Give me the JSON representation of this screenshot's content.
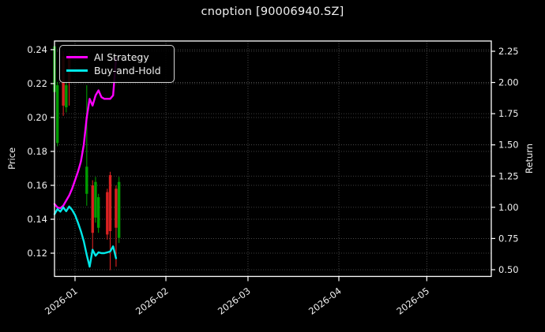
{
  "title": "cnoption [90006940.SZ]",
  "colors": {
    "background": "#000000",
    "text": "#f0f0f0",
    "grid": "#555555",
    "spine": "#ffffff",
    "ai_strategy": "#ff00ff",
    "buy_and_hold": "#00e8e8",
    "candle_up": "#009b00",
    "candle_down": "#d92121"
  },
  "legend": {
    "items": [
      {
        "label": "AI Strategy",
        "color": "#ff00ff"
      },
      {
        "label": "Buy-and-Hold",
        "color": "#00e8e8"
      }
    ]
  },
  "chart_data": {
    "type": "line+candlestick",
    "title": "cnoption [90006940.SZ]",
    "grid": {
      "style": "dotted",
      "color": "#555555"
    },
    "legend_position": "upper-left",
    "x_axis": {
      "domain": [
        "2025-12-25",
        "2026-05-23"
      ],
      "ticks": [
        {
          "date": "2026-01-01",
          "label": "2026-01"
        },
        {
          "date": "2026-02-01",
          "label": "2026-02"
        },
        {
          "date": "2026-03-01",
          "label": "2026-03"
        },
        {
          "date": "2026-04-01",
          "label": "2026-04"
        },
        {
          "date": "2026-05-01",
          "label": "2026-05"
        }
      ],
      "tick_rotation_deg": 37
    },
    "left_axis": {
      "label": "Price",
      "range": [
        0.1063,
        0.2451
      ],
      "ticks": [
        {
          "value": 0.12,
          "label": "0.12"
        },
        {
          "value": 0.14,
          "label": "0.14"
        },
        {
          "value": 0.16,
          "label": "0.16"
        },
        {
          "value": 0.18,
          "label": "0.18"
        },
        {
          "value": 0.2,
          "label": "0.20"
        },
        {
          "value": 0.22,
          "label": "0.22"
        },
        {
          "value": 0.24,
          "label": "0.24"
        }
      ]
    },
    "right_axis": {
      "label": "Return",
      "range": [
        0.4463,
        2.3321
      ],
      "ticks": [
        {
          "value": 0.5,
          "label": "0.50"
        },
        {
          "value": 0.75,
          "label": "0.75"
        },
        {
          "value": 1.0,
          "label": "1.00"
        },
        {
          "value": 1.25,
          "label": "1.25"
        },
        {
          "value": 1.5,
          "label": "1.50"
        },
        {
          "value": 1.75,
          "label": "1.75"
        },
        {
          "value": 2.0,
          "label": "2.00"
        },
        {
          "value": 2.25,
          "label": "2.25"
        }
      ]
    },
    "series": [
      {
        "name": "AI Strategy",
        "axis": "left",
        "color": "#ff00ff",
        "points": [
          [
            "2025-12-25",
            0.149
          ],
          [
            "2025-12-26",
            0.147
          ],
          [
            "2025-12-27",
            0.1465
          ],
          [
            "2025-12-28",
            0.148
          ],
          [
            "2025-12-29",
            0.151
          ],
          [
            "2025-12-30",
            0.154
          ],
          [
            "2025-12-31",
            0.158
          ],
          [
            "2026-01-01",
            0.163
          ],
          [
            "2026-01-02",
            0.168
          ],
          [
            "2026-01-03",
            0.174
          ],
          [
            "2026-01-04",
            0.184
          ],
          [
            "2026-01-05",
            0.2
          ],
          [
            "2026-01-06",
            0.211
          ],
          [
            "2026-01-07",
            0.207
          ],
          [
            "2026-01-08",
            0.213
          ],
          [
            "2026-01-09",
            0.216
          ],
          [
            "2026-01-10",
            0.212
          ],
          [
            "2026-01-11",
            0.211
          ],
          [
            "2026-01-12",
            0.211
          ],
          [
            "2026-01-13",
            0.211
          ],
          [
            "2026-01-14",
            0.213
          ],
          [
            "2026-01-15",
            0.235
          ]
        ]
      },
      {
        "name": "Buy-and-Hold",
        "axis": "left",
        "color": "#00e8e8",
        "points": [
          [
            "2025-12-25",
            0.143
          ],
          [
            "2025-12-26",
            0.146
          ],
          [
            "2025-12-27",
            0.1445
          ],
          [
            "2025-12-28",
            0.147
          ],
          [
            "2025-12-29",
            0.1447
          ],
          [
            "2025-12-30",
            0.1475
          ],
          [
            "2025-12-31",
            0.1455
          ],
          [
            "2026-01-01",
            0.1425
          ],
          [
            "2026-01-02",
            0.138
          ],
          [
            "2026-01-03",
            0.133
          ],
          [
            "2026-01-04",
            0.127
          ],
          [
            "2026-01-05",
            0.119
          ],
          [
            "2026-01-06",
            0.112
          ],
          [
            "2026-01-07",
            0.122
          ],
          [
            "2026-01-08",
            0.1185
          ],
          [
            "2026-01-09",
            0.1205
          ],
          [
            "2026-01-10",
            0.12
          ],
          [
            "2026-01-11",
            0.12
          ],
          [
            "2026-01-12",
            0.1205
          ],
          [
            "2026-01-13",
            0.121
          ],
          [
            "2026-01-14",
            0.124
          ],
          [
            "2026-01-15",
            0.117
          ]
        ]
      }
    ],
    "candles": [
      {
        "date": "2025-12-25",
        "open": 0.215,
        "high": 0.243,
        "low": 0.194,
        "close": 0.242,
        "dir": "up"
      },
      {
        "date": "2025-12-26",
        "open": 0.185,
        "high": 0.221,
        "low": 0.183,
        "close": 0.219,
        "dir": "up"
      },
      {
        "date": "2025-12-28",
        "open": 0.236,
        "high": 0.239,
        "low": 0.201,
        "close": 0.207,
        "dir": "down"
      },
      {
        "date": "2025-12-29",
        "open": 0.206,
        "high": 0.221,
        "low": 0.203,
        "close": 0.219,
        "dir": "up"
      },
      {
        "date": "2025-12-30",
        "open": 0.236,
        "high": 0.238,
        "low": 0.207,
        "close": 0.221,
        "dir": "down"
      },
      {
        "date": "2026-01-05",
        "open": 0.155,
        "high": 0.219,
        "low": 0.148,
        "close": 0.171,
        "dir": "up"
      },
      {
        "date": "2026-01-07",
        "open": 0.16,
        "high": 0.163,
        "low": 0.12,
        "close": 0.132,
        "dir": "down"
      },
      {
        "date": "2026-01-08",
        "open": 0.141,
        "high": 0.165,
        "low": 0.138,
        "close": 0.162,
        "dir": "up"
      },
      {
        "date": "2026-01-09",
        "open": 0.135,
        "high": 0.155,
        "low": 0.132,
        "close": 0.153,
        "dir": "up"
      },
      {
        "date": "2026-01-12",
        "open": 0.156,
        "high": 0.158,
        "low": 0.128,
        "close": 0.131,
        "dir": "down"
      },
      {
        "date": "2026-01-13",
        "open": 0.166,
        "high": 0.168,
        "low": 0.11,
        "close": 0.133,
        "dir": "down"
      },
      {
        "date": "2026-01-15",
        "open": 0.158,
        "high": 0.16,
        "low": 0.112,
        "close": 0.135,
        "dir": "down"
      },
      {
        "date": "2026-01-16",
        "open": 0.129,
        "high": 0.165,
        "low": 0.126,
        "close": 0.162,
        "dir": "up"
      }
    ]
  }
}
